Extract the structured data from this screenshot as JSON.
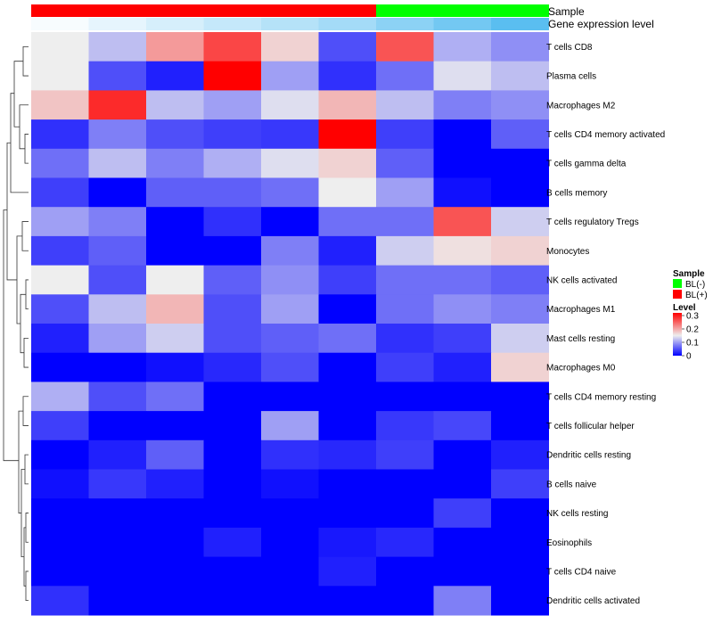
{
  "chart_data": {
    "type": "heatmap",
    "columns": 9,
    "annotation_tracks": [
      "Sample",
      "Gene expression level"
    ],
    "sample_groups": [
      "BL(+)",
      "BL(+)",
      "BL(+)",
      "BL(+)",
      "BL(+)",
      "BL(+)",
      "BL(-)",
      "BL(-)",
      "BL(-)"
    ],
    "gene_expression_level": [
      0.05,
      0.15,
      0.25,
      0.35,
      0.45,
      0.55,
      0.7,
      0.85,
      1.0
    ],
    "rows": [
      "T cells CD8",
      "Plasma cells",
      "Macrophages M2",
      "T cells CD4 memory activated",
      "T cells gamma delta",
      "B cells memory",
      "T cells regulatory  Tregs",
      "Monocytes",
      "NK cells activated",
      "Macrophages M1",
      "Mast cells resting",
      "Macrophages M0",
      "T cells CD4 memory resting",
      "T cells follicular helper",
      "Dendritic cells resting",
      "B cells naive",
      "NK cells resting",
      "Eosinophils",
      "T cells CD4 naive",
      "Dendritic cells activated"
    ],
    "values": [
      [
        0.15,
        0.12,
        0.21,
        0.27,
        0.17,
        0.05,
        0.26,
        0.11,
        0.09
      ],
      [
        0.15,
        0.05,
        0.02,
        0.32,
        0.1,
        0.03,
        0.07,
        0.14,
        0.12
      ],
      [
        0.18,
        0.29,
        0.12,
        0.1,
        0.14,
        0.19,
        0.12,
        0.08,
        0.09
      ],
      [
        0.03,
        0.08,
        0.05,
        0.04,
        0.035,
        0.32,
        0.04,
        0.0,
        0.06
      ],
      [
        0.07,
        0.12,
        0.08,
        0.11,
        0.14,
        0.17,
        0.06,
        0.0,
        0.0
      ],
      [
        0.04,
        0.0,
        0.06,
        0.06,
        0.07,
        0.15,
        0.1,
        0.01,
        0.0
      ],
      [
        0.1,
        0.08,
        0.0,
        0.03,
        0.0,
        0.07,
        0.07,
        0.26,
        0.13
      ],
      [
        0.04,
        0.06,
        0.0,
        0.0,
        0.08,
        0.02,
        0.13,
        0.16,
        0.17
      ],
      [
        0.15,
        0.05,
        0.15,
        0.06,
        0.09,
        0.04,
        0.07,
        0.07,
        0.06
      ],
      [
        0.05,
        0.12,
        0.19,
        0.05,
        0.1,
        0.0,
        0.07,
        0.09,
        0.08
      ],
      [
        0.02,
        0.1,
        0.13,
        0.05,
        0.06,
        0.07,
        0.03,
        0.04,
        0.13
      ],
      [
        0.0,
        0.0,
        0.01,
        0.025,
        0.05,
        0.0,
        0.04,
        0.02,
        0.17
      ],
      [
        0.11,
        0.05,
        0.07,
        0.0,
        0.0,
        0.0,
        0.0,
        0.0,
        0.0
      ],
      [
        0.04,
        0.0,
        0.0,
        0.0,
        0.1,
        0.0,
        0.035,
        0.045,
        0.0
      ],
      [
        0.0,
        0.02,
        0.06,
        0.0,
        0.03,
        0.025,
        0.04,
        0.0,
        0.02
      ],
      [
        0.01,
        0.035,
        0.02,
        0.0,
        0.01,
        0.0,
        0.0,
        0.0,
        0.04
      ],
      [
        0.0,
        0.0,
        0.0,
        0.0,
        0.0,
        0.0,
        0.0,
        0.04,
        0.0
      ],
      [
        0.0,
        0.0,
        0.0,
        0.02,
        0.0,
        0.015,
        0.025,
        0.0,
        0.0
      ],
      [
        0.0,
        0.0,
        0.0,
        0.0,
        0.0,
        0.02,
        0.0,
        0.0,
        0.0
      ],
      [
        0.03,
        0.0,
        0.0,
        0.0,
        0.0,
        0.0,
        0.0,
        0.08,
        0.0
      ]
    ],
    "color_scale": {
      "min": 0,
      "mid": 0.15,
      "max": 0.32,
      "low_color": "#0000ff",
      "mid_color": "#eeeeee",
      "high_color": "#ff0000"
    },
    "legend": {
      "position": "right",
      "sample": {
        "title": "Sample",
        "items": [
          {
            "label": "BL(-)",
            "color": "#00ff00"
          },
          {
            "label": "BL(+)",
            "color": "#ff0000"
          }
        ]
      },
      "level": {
        "title": "Level",
        "ticks": [
          0.3,
          0.2,
          0.1,
          0
        ]
      }
    },
    "row_dendrogram": true
  }
}
